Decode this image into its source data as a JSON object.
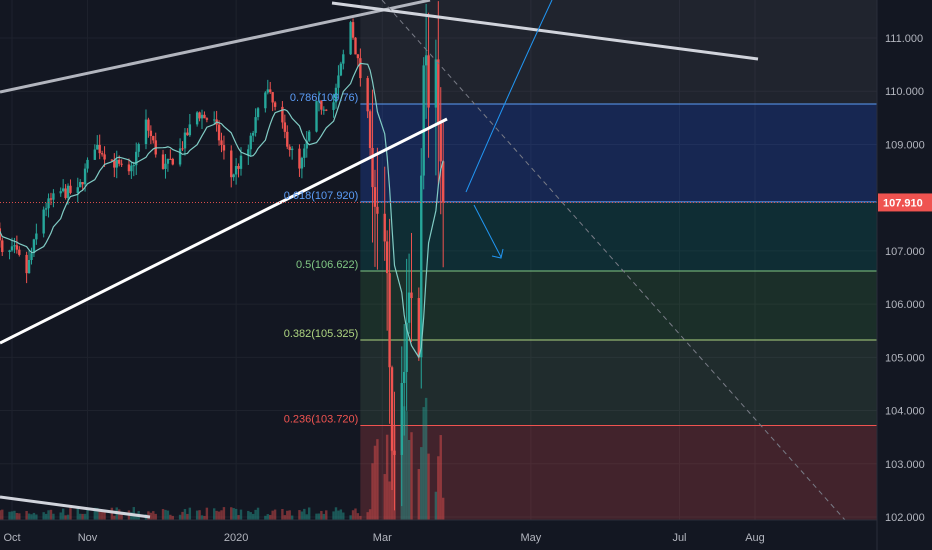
{
  "chart_data": {
    "type": "candlestick",
    "title": "",
    "ylim": [
      101.95,
      111.85
    ],
    "y_ticks": [
      {
        "value": 102,
        "label": "102.000"
      },
      {
        "value": 103,
        "label": "103.000"
      },
      {
        "value": 104,
        "label": "104.000"
      },
      {
        "value": 105,
        "label": "105.000"
      },
      {
        "value": 106,
        "label": "106.000"
      },
      {
        "value": 107,
        "label": "107.000"
      },
      {
        "value": 109,
        "label": "109.000"
      },
      {
        "value": 110,
        "label": "110.000"
      },
      {
        "value": 111,
        "label": "111.000"
      }
    ],
    "x_ticks": [
      {
        "date": "2019-10-01",
        "label": "Oct"
      },
      {
        "date": "2019-11-01",
        "label": "Nov"
      },
      {
        "date": "2020-01-01",
        "label": "2020"
      },
      {
        "date": "2020-03-01",
        "label": "Mar"
      },
      {
        "date": "2020-05-01",
        "label": "May"
      },
      {
        "date": "2020-07-01",
        "label": "Jul"
      },
      {
        "date": "2020-08-01",
        "label": "Aug"
      }
    ],
    "x_range": [
      "2019-09-23",
      "2020-09-25"
    ],
    "current_price": {
      "value": 107.91,
      "label": "107.910",
      "color": "#ef5350"
    },
    "fib_levels": [
      {
        "ratio": 0.786,
        "value": 109.76,
        "label": "0.786(109.76)",
        "color": "#5b9cf6"
      },
      {
        "ratio": 0.618,
        "value": 107.92,
        "label": "0.618(107.920)",
        "color": "#5b9cf6"
      },
      {
        "ratio": 0.5,
        "value": 106.622,
        "label": "0.5(106.622)",
        "color": "#81c784"
      },
      {
        "ratio": 0.382,
        "value": 105.325,
        "label": "0.382(105.325)",
        "color": "#aed581"
      },
      {
        "ratio": 0.236,
        "value": 103.72,
        "label": "0.236(103.720)",
        "color": "#ef5350"
      }
    ],
    "fib_range": {
      "start": "2020-02-21",
      "end": "2020-09-25"
    },
    "colors": {
      "up": "#26a69a",
      "down": "#ef5350",
      "ma": "#80cbc4",
      "trend": "#d1d4dc"
    },
    "candle_segments": [
      [
        "2019-09-24",
        108.3,
        107.6,
        108.4
      ],
      [
        "2019-09-27",
        107.9,
        106.9,
        107.8
      ],
      [
        "2019-10-02",
        107.7,
        107.0,
        106.8
      ],
      [
        "2019-10-07",
        106.7,
        106.6,
        106.9
      ],
      [
        "2019-10-14",
        107.8,
        107.8,
        108.7
      ],
      [
        "2019-10-21",
        108.7,
        108.1,
        108.4
      ],
      [
        "2019-10-28",
        108.3,
        108.1,
        108.3
      ],
      [
        "2019-11-04",
        108.6,
        109.0,
        108.8
      ],
      [
        "2019-11-11",
        108.9,
        108.7,
        108.4
      ],
      [
        "2019-11-18",
        108.6,
        108.4,
        108.9
      ],
      [
        "2019-11-25",
        109.0,
        109.4,
        108.9
      ],
      [
        "2019-12-02",
        108.6,
        108.5,
        108.8
      ],
      [
        "2019-12-09",
        108.7,
        108.9,
        108.6
      ],
      [
        "2019-12-16",
        109.4,
        109.6,
        109.5
      ],
      [
        "2019-12-23",
        109.3,
        109.4,
        109.6
      ],
      [
        "2019-12-30",
        108.8,
        108.4,
        108.2
      ],
      [
        "2020-01-06",
        108.3,
        108.9,
        109.2
      ],
      [
        "2020-01-13",
        109.9,
        110.1,
        110.0
      ],
      [
        "2020-01-20",
        110.1,
        109.3,
        109.0
      ],
      [
        "2020-01-27",
        108.6,
        108.5,
        108.8
      ],
      [
        "2020-02-03",
        109.3,
        109.7,
        109.8
      ],
      [
        "2020-02-10",
        109.8,
        109.8,
        109.9
      ],
      [
        "2020-02-17",
        110.2,
        111.3,
        111.6
      ],
      [
        "2020-02-24",
        110.8,
        109.5,
        108.0
      ],
      [
        "2020-02-28",
        107.9,
        107.7,
        107.4
      ],
      [
        "2020-03-03",
        107.5,
        106.0,
        105.5
      ],
      [
        "2020-03-06",
        104.5,
        102.6,
        103.1
      ],
      [
        "2020-03-09",
        104.5,
        104.7,
        105.3
      ],
      [
        "2020-03-12",
        104.8,
        106.0,
        107.2
      ],
      [
        "2020-03-16",
        106.8,
        105.6,
        108.0
      ],
      [
        "2020-03-18",
        109.4,
        110.8,
        111.2
      ],
      [
        "2020-03-20",
        110.9,
        110.3,
        111.6
      ],
      [
        "2020-03-24",
        111.2,
        109.7,
        110.9
      ],
      [
        "2020-03-27",
        109.0,
        107.9,
        107.91
      ]
    ]
  }
}
